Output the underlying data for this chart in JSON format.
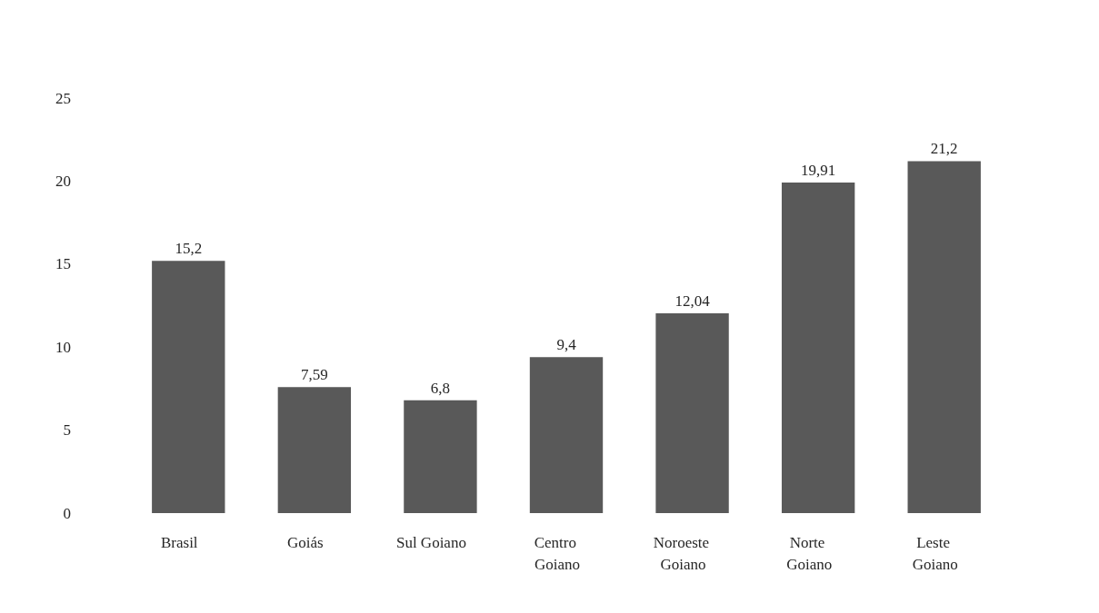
{
  "chart_data": {
    "type": "bar",
    "categories": [
      "Brasil",
      "Goiás",
      "Sul Goiano",
      "Centro Goiano",
      "Noroeste Goiano",
      "Norte Goiano",
      "Leste Goiano"
    ],
    "values": [
      15.2,
      7.59,
      6.8,
      9.4,
      12.04,
      19.91,
      21.2
    ],
    "value_labels": [
      "15,2",
      "7,59",
      "6,8",
      "9,4",
      "12,04",
      "19,91",
      "21,2"
    ],
    "color": "#595959",
    "ylim": [
      0,
      25
    ],
    "yticks": [
      0,
      5,
      10,
      15,
      20,
      25
    ],
    "grid": false
  }
}
